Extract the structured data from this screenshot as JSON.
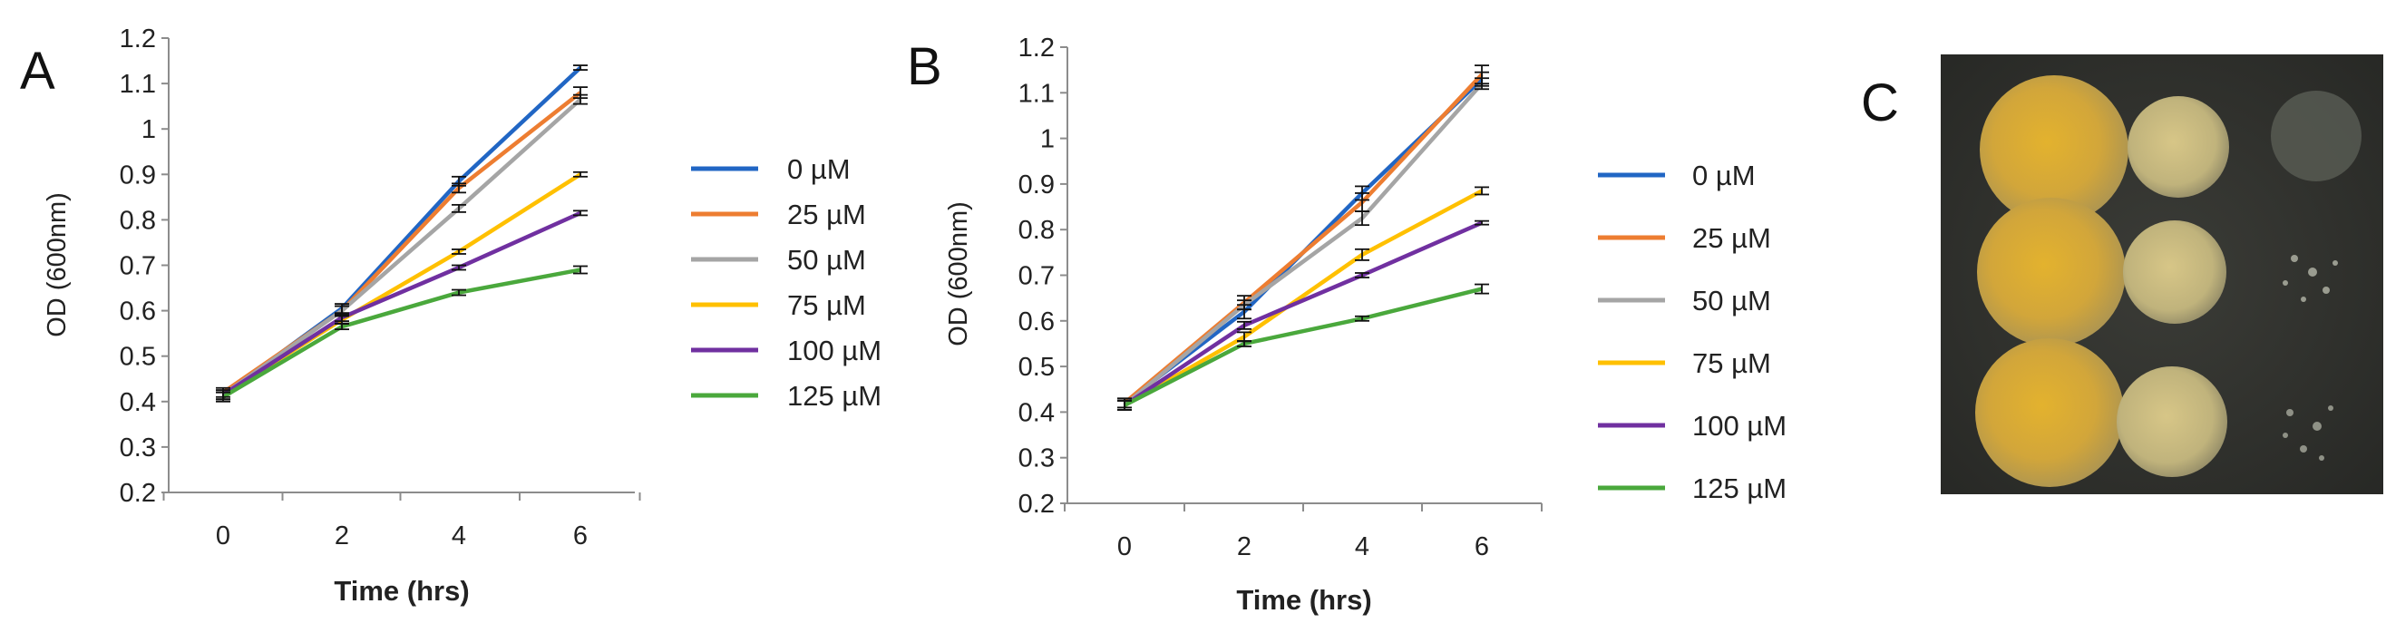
{
  "panels": {
    "a": "A",
    "b": "B",
    "c": "C"
  },
  "chart_data": [
    {
      "type": "line",
      "panel": "A",
      "title": "",
      "xlabel": "Time (hrs)",
      "ylabel": "OD (600nm)",
      "x": [
        0,
        2,
        4,
        6
      ],
      "x_tick_labels": [
        "0",
        "2",
        "4",
        "6"
      ],
      "ylim": [
        0.2,
        1.2
      ],
      "y_tick_labels": [
        "0.2",
        "0.3",
        "0.4",
        "0.5",
        "0.6",
        "0.7",
        "0.8",
        "0.9",
        "1",
        "1.1",
        "1.2"
      ],
      "grid": false,
      "legend_position": "right",
      "series": [
        {
          "name": "0 µM",
          "color": "#2166c4",
          "values": [
            0.415,
            0.605,
            0.885,
            1.135
          ],
          "errors": [
            0.01,
            0.01,
            0.01,
            0.005
          ]
        },
        {
          "name": "25 µM",
          "color": "#ed7d31",
          "values": [
            0.42,
            0.6,
            0.87,
            1.08
          ],
          "errors": [
            0.01,
            0.01,
            0.01,
            0.012
          ]
        },
        {
          "name": "50 µM",
          "color": "#a5a5a5",
          "values": [
            0.415,
            0.6,
            0.825,
            1.065
          ],
          "errors": [
            0.01,
            0.01,
            0.008,
            0.01
          ]
        },
        {
          "name": "75 µM",
          "color": "#ffc000",
          "values": [
            0.415,
            0.58,
            0.73,
            0.9
          ],
          "errors": [
            0.01,
            0.008,
            0.005,
            0.005
          ]
        },
        {
          "name": "100 µM",
          "color": "#7030a0",
          "values": [
            0.415,
            0.585,
            0.695,
            0.815
          ],
          "errors": [
            0.01,
            0.008,
            0.005,
            0.005
          ]
        },
        {
          "name": "125 µM",
          "color": "#4aa83c",
          "values": [
            0.41,
            0.565,
            0.64,
            0.69
          ],
          "errors": [
            0.01,
            0.006,
            0.006,
            0.008
          ]
        }
      ]
    },
    {
      "type": "line",
      "panel": "B",
      "title": "",
      "xlabel": "Time (hrs)",
      "ylabel": "OD (600nm)",
      "x": [
        0,
        2,
        4,
        6
      ],
      "x_tick_labels": [
        "0",
        "2",
        "4",
        "6"
      ],
      "ylim": [
        0.2,
        1.2
      ],
      "y_tick_labels": [
        "0.2",
        "0.3",
        "0.4",
        "0.5",
        "0.6",
        "0.7",
        "0.8",
        "0.9",
        "1",
        "1.1",
        "1.2"
      ],
      "grid": false,
      "legend_position": "right",
      "series": [
        {
          "name": "0 µM",
          "color": "#2166c4",
          "values": [
            0.42,
            0.62,
            0.88,
            1.13
          ],
          "errors": [
            0.01,
            0.015,
            0.015,
            0.015
          ]
        },
        {
          "name": "25 µM",
          "color": "#ed7d31",
          "values": [
            0.42,
            0.64,
            0.86,
            1.14
          ],
          "errors": [
            0.01,
            0.015,
            0.02,
            0.02
          ]
        },
        {
          "name": "50 µM",
          "color": "#a5a5a5",
          "values": [
            0.415,
            0.635,
            0.825,
            1.12
          ],
          "errors": [
            0.01,
            0.01,
            0.015,
            0.012
          ]
        },
        {
          "name": "75 µM",
          "color": "#ffc000",
          "values": [
            0.415,
            0.565,
            0.745,
            0.885
          ],
          "errors": [
            0.01,
            0.01,
            0.012,
            0.008
          ]
        },
        {
          "name": "100 µM",
          "color": "#7030a0",
          "values": [
            0.415,
            0.59,
            0.7,
            0.815
          ],
          "errors": [
            0.01,
            0.008,
            0.005,
            0.004
          ]
        },
        {
          "name": "125 µM",
          "color": "#4aa83c",
          "values": [
            0.415,
            0.55,
            0.605,
            0.67
          ],
          "errors": [
            0.01,
            0.006,
            0.005,
            0.01
          ]
        }
      ]
    }
  ]
}
